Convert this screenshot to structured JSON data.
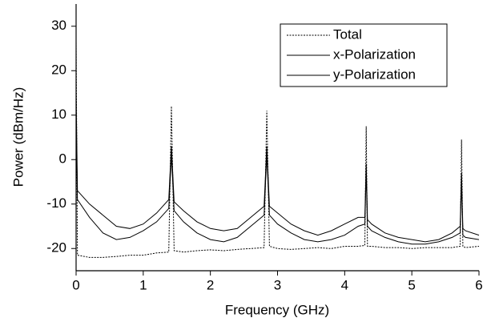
{
  "chart_data": {
    "type": "line",
    "x_label": "Frequency (GHz)",
    "y_label": "Power (dBm/Hz)",
    "x": [
      0,
      0.02,
      0.2,
      0.4,
      0.6,
      0.8,
      1.0,
      1.2,
      1.38,
      1.42,
      1.46,
      1.6,
      1.8,
      2.0,
      2.2,
      2.4,
      2.6,
      2.8,
      2.84,
      2.88,
      3.0,
      3.2,
      3.4,
      3.6,
      3.8,
      4.0,
      4.2,
      4.3,
      4.32,
      4.34,
      4.4,
      4.6,
      4.8,
      5.0,
      5.2,
      5.4,
      5.6,
      5.72,
      5.74,
      5.76,
      5.8,
      6.0
    ],
    "series": [
      {
        "name": "Total",
        "color": "#000000",
        "line_style": "dotted",
        "values": [
          27,
          -21.5,
          -22,
          -22,
          -21.8,
          -21.5,
          -21.5,
          -21,
          -20.8,
          12,
          -20.5,
          -20.8,
          -20.5,
          -20.3,
          -20.5,
          -20.2,
          -20,
          -19.8,
          11,
          -19.5,
          -20,
          -20.2,
          -20,
          -19.8,
          -20,
          -19.5,
          -19.5,
          -19.3,
          7.5,
          -19.5,
          -19.5,
          -19.8,
          -19.8,
          -20,
          -19.8,
          -19.8,
          -19.8,
          -19.5,
          4.5,
          -19.5,
          -19.8,
          -19.5
        ]
      },
      {
        "name": "x-Polarization",
        "color": "#000000",
        "line_style": "solid",
        "values": [
          15,
          -7,
          -10,
          -12.5,
          -15,
          -15.5,
          -14.5,
          -12,
          -9,
          3,
          -9.5,
          -11.5,
          -14,
          -15.5,
          -16,
          -15.5,
          -13,
          -10.5,
          3,
          -10.5,
          -12,
          -14.5,
          -16,
          -17,
          -16,
          -14.5,
          -13,
          -13,
          -1,
          -13.5,
          -14.5,
          -16.5,
          -17.5,
          -18,
          -18.5,
          -18,
          -16.5,
          -15,
          -3,
          -15.5,
          -16,
          -17
        ]
      },
      {
        "name": "y-Polarization",
        "color": "#000000",
        "line_style": "solid",
        "values": [
          10,
          -9,
          -13,
          -16.5,
          -18,
          -17.5,
          -16,
          -14,
          -11,
          1,
          -11.5,
          -14,
          -16.5,
          -18,
          -18.5,
          -17.5,
          -15,
          -12.5,
          1,
          -12.5,
          -14.5,
          -16.5,
          -18,
          -18.5,
          -18,
          -17,
          -15,
          -14.5,
          -3,
          -15,
          -16,
          -17.5,
          -18.5,
          -19,
          -19,
          -18.5,
          -17.5,
          -16.5,
          -5,
          -17,
          -17.5,
          -18
        ]
      }
    ],
    "xlim": [
      0,
      6
    ],
    "xticks": [
      0,
      1,
      2,
      3,
      4,
      5,
      6
    ],
    "ylim": [
      -25,
      35
    ],
    "yticks": [
      -20,
      -10,
      0,
      10,
      20,
      30
    ],
    "legend": "upper right",
    "grid": false
  }
}
